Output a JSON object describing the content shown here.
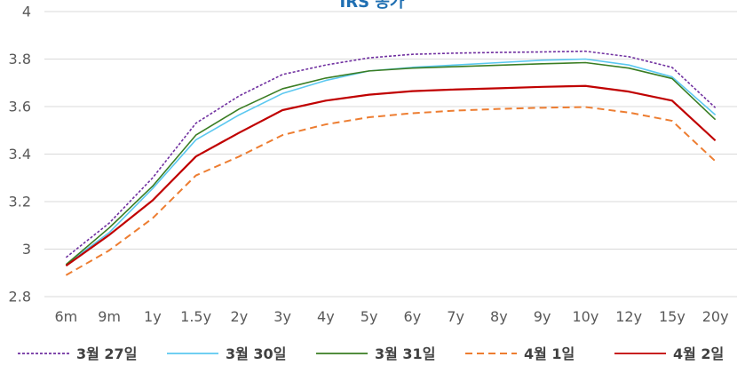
{
  "chart_data": {
    "type": "line",
    "title": "IRS 동가",
    "xlabel": "",
    "ylabel": "",
    "categories": [
      "6m",
      "9m",
      "1y",
      "1.5y",
      "2y",
      "3y",
      "4y",
      "5y",
      "6y",
      "7y",
      "8y",
      "9y",
      "10y",
      "12y",
      "15y",
      "20y"
    ],
    "ylim": [
      2.8,
      4.0
    ],
    "yticks": [
      "2.8",
      "3",
      "3.2",
      "3.4",
      "3.6",
      "3.8",
      "4"
    ],
    "grid": true,
    "legend_position": "bottom",
    "series": [
      {
        "name": "3월 27일",
        "color": "#7030a0",
        "dash": "dotted",
        "values": [
          2.965,
          3.11,
          3.3,
          3.53,
          3.645,
          3.735,
          3.775,
          3.805,
          3.82,
          3.825,
          3.828,
          3.83,
          3.833,
          3.81,
          3.765,
          3.595
        ]
      },
      {
        "name": "3월 30일",
        "color": "#5bc8f0",
        "dash": "solid",
        "values": [
          2.935,
          3.07,
          3.255,
          3.46,
          3.565,
          3.655,
          3.71,
          3.75,
          3.765,
          3.775,
          3.785,
          3.795,
          3.8,
          3.775,
          3.725,
          3.565
        ]
      },
      {
        "name": "3월 31일",
        "color": "#3a7d23",
        "dash": "solid",
        "values": [
          2.935,
          3.09,
          3.265,
          3.48,
          3.59,
          3.675,
          3.72,
          3.75,
          3.762,
          3.768,
          3.774,
          3.78,
          3.785,
          3.762,
          3.718,
          3.545
        ]
      },
      {
        "name": "4월 1일",
        "color": "#ed7d31",
        "dash": "dashed",
        "values": [
          2.89,
          2.995,
          3.13,
          3.31,
          3.39,
          3.48,
          3.525,
          3.555,
          3.572,
          3.583,
          3.59,
          3.595,
          3.598,
          3.575,
          3.54,
          3.37
        ]
      },
      {
        "name": "4월 2일",
        "color": "#c00000",
        "dash": "solid",
        "values": [
          2.93,
          3.06,
          3.205,
          3.39,
          3.49,
          3.585,
          3.625,
          3.65,
          3.665,
          3.672,
          3.677,
          3.683,
          3.687,
          3.663,
          3.625,
          3.457
        ]
      }
    ]
  }
}
